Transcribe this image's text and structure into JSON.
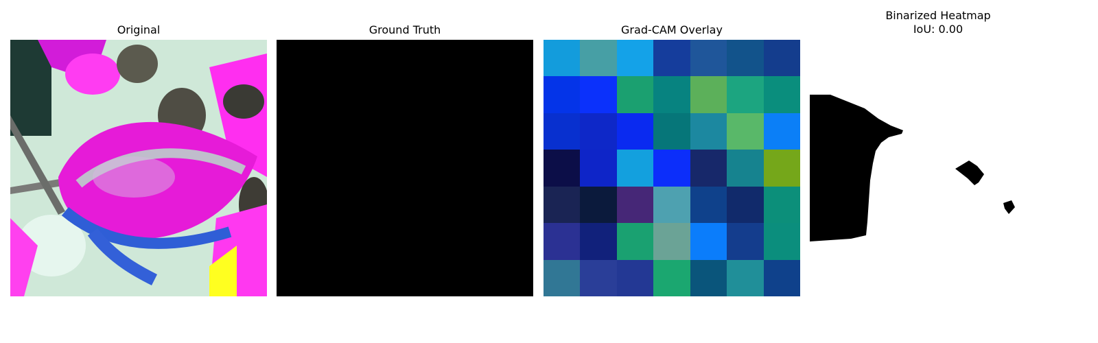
{
  "panels": {
    "original": {
      "title": "Original",
      "image_icon": "leaf-photo-icon"
    },
    "ground_truth": {
      "title": "Ground Truth"
    },
    "gradcam": {
      "title": "Grad-CAM Overlay",
      "cells": [
        [
          "#139cdc",
          "#479fa5",
          "#14a2e8",
          "#153d9c",
          "#1f569a",
          "#12538b",
          "#143d8d"
        ],
        [
          "#0434e8",
          "#0b31fb",
          "#1ba070",
          "#078380",
          "#5cb05a",
          "#1ca580",
          "#0a8e7d"
        ],
        [
          "#0830cf",
          "#0e28c8",
          "#0a2af0",
          "#067679",
          "#1c88a0",
          "#59b869",
          "#0b7ff7"
        ],
        [
          "#0c0e48",
          "#0e25c8",
          "#13a0de",
          "#0c2efa",
          "#17286a",
          "#16838f",
          "#75a71a"
        ],
        [
          "#1a2454",
          "#0b1a3c",
          "#462777",
          "#4ea1b0",
          "#0f418b",
          "#112a6b",
          "#0c8f7a"
        ],
        [
          "#2b3193",
          "#11217b",
          "#1aa171",
          "#6ba396",
          "#0b7dfb",
          "#143d8d",
          "#0b8e7d"
        ],
        [
          "#317795",
          "#2a3e98",
          "#233894",
          "#1ba770",
          "#0a557b",
          "#208f99",
          "#0f418b"
        ]
      ]
    },
    "binarized": {
      "title": "Binarized Heatmap",
      "metric": "IoU: 0.00"
    }
  }
}
